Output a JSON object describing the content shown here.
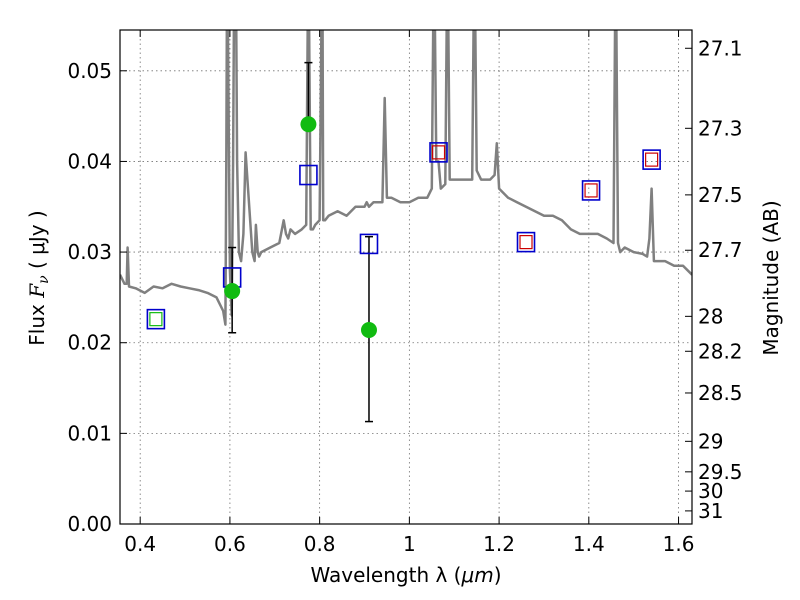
{
  "chart_data": {
    "type": "scatter",
    "title": "",
    "xlabel_text": "Wavelength  λ (",
    "xlabel_unit": "μm",
    "xlabel_close": ")",
    "ylabel_prefix": "Flux ",
    "ylabel_symbol": "F",
    "ylabel_sub": "ν",
    "ylabel_suffix": " ( μJy )",
    "y2label": "Magnitude (AB)",
    "xlim": [
      0.355,
      1.63
    ],
    "ylim": [
      0.0,
      0.0545
    ],
    "grid": true,
    "x_ticks": [
      0.4,
      0.6,
      0.8,
      1.0,
      1.2,
      1.4,
      1.6
    ],
    "x_tick_labels": [
      "0.4",
      "0.6",
      "0.8",
      "1",
      "1.2",
      "1.4",
      "1.6"
    ],
    "y_ticks": [
      0.0,
      0.01,
      0.02,
      0.03,
      0.04,
      0.05
    ],
    "y_tick_labels": [
      "0.00",
      "0.01",
      "0.02",
      "0.03",
      "0.04",
      "0.05"
    ],
    "y2_ticks": [
      27.1,
      27.3,
      27.5,
      27.7,
      28.0,
      28.2,
      28.5,
      29.0,
      29.5,
      30.0,
      31.0
    ],
    "y2_tick_labels": [
      "27.1",
      "27.3",
      "27.5",
      "27.7",
      "28",
      "28.2",
      "28.5",
      "29",
      "29.5",
      "30",
      "31"
    ],
    "colors": {
      "model": "#808080",
      "model_photometry": "#0000cc",
      "observed": "#11bb11",
      "inner_red": "#cc0000",
      "inner_green": "#11bb11",
      "errorbar": "#000000"
    },
    "series": [
      {
        "kind": "model_spectrum",
        "x": [
          0.355,
          0.365,
          0.37,
          0.372,
          0.375,
          0.39,
          0.41,
          0.43,
          0.45,
          0.47,
          0.49,
          0.51,
          0.53,
          0.55,
          0.57,
          0.585,
          0.59,
          0.592,
          0.594,
          0.6,
          0.604,
          0.607,
          0.61,
          0.613,
          0.616,
          0.62,
          0.625,
          0.63,
          0.635,
          0.65,
          0.655,
          0.658,
          0.662,
          0.665,
          0.67,
          0.69,
          0.71,
          0.72,
          0.725,
          0.73,
          0.735,
          0.745,
          0.76,
          0.77,
          0.775,
          0.78,
          0.785,
          0.79,
          0.8,
          0.806,
          0.808,
          0.812,
          0.82,
          0.84,
          0.86,
          0.88,
          0.9,
          0.905,
          0.91,
          0.92,
          0.93,
          0.94,
          0.945,
          0.95,
          0.96,
          0.98,
          1.0,
          1.02,
          1.04,
          1.05,
          1.055,
          1.06,
          1.065,
          1.07,
          1.08,
          1.085,
          1.09,
          1.1,
          1.12,
          1.14,
          1.145,
          1.15,
          1.16,
          1.18,
          1.19,
          1.195,
          1.2,
          1.22,
          1.24,
          1.26,
          1.28,
          1.3,
          1.32,
          1.34,
          1.36,
          1.38,
          1.4,
          1.42,
          1.44,
          1.455,
          1.46,
          1.465,
          1.47,
          1.48,
          1.5,
          1.52,
          1.53,
          1.535,
          1.54,
          1.545,
          1.55,
          1.57,
          1.59,
          1.61,
          1.63
        ],
        "y": [
          0.0275,
          0.0265,
          0.0265,
          0.0305,
          0.0262,
          0.026,
          0.0255,
          0.0262,
          0.026,
          0.0265,
          0.0262,
          0.026,
          0.0258,
          0.0255,
          0.025,
          0.0235,
          0.022,
          0.04,
          0.065,
          0.028,
          0.023,
          0.04,
          0.065,
          0.065,
          0.04,
          0.03,
          0.029,
          0.032,
          0.041,
          0.03,
          0.029,
          0.033,
          0.03,
          0.0295,
          0.03,
          0.0305,
          0.031,
          0.0335,
          0.032,
          0.0315,
          0.0325,
          0.032,
          0.0325,
          0.033,
          0.065,
          0.0325,
          0.0325,
          0.033,
          0.0335,
          0.065,
          0.0335,
          0.0335,
          0.034,
          0.0345,
          0.034,
          0.035,
          0.035,
          0.0355,
          0.035,
          0.0355,
          0.0355,
          0.0355,
          0.047,
          0.036,
          0.036,
          0.0355,
          0.0355,
          0.036,
          0.036,
          0.037,
          0.065,
          0.04,
          0.04,
          0.037,
          0.0375,
          0.065,
          0.038,
          0.038,
          0.038,
          0.038,
          0.065,
          0.039,
          0.038,
          0.038,
          0.0385,
          0.042,
          0.037,
          0.036,
          0.0355,
          0.035,
          0.0345,
          0.034,
          0.034,
          0.0335,
          0.0325,
          0.032,
          0.032,
          0.032,
          0.0315,
          0.031,
          0.065,
          0.031,
          0.03,
          0.0305,
          0.03,
          0.0298,
          0.0295,
          0.0315,
          0.037,
          0.029,
          0.029,
          0.029,
          0.0285,
          0.0285,
          0.0275
        ]
      },
      {
        "kind": "model_photometry",
        "name": "",
        "x": [
          0.435,
          0.605,
          0.775,
          0.91,
          1.065,
          1.26,
          1.405,
          1.54
        ],
        "y": [
          0.0226,
          0.0272,
          0.0385,
          0.0309,
          0.041,
          0.0311,
          0.0368,
          0.0402
        ],
        "inner": [
          "green",
          "none",
          "none",
          "none",
          "red",
          "red",
          "red",
          "red"
        ]
      },
      {
        "kind": "observed",
        "name": "",
        "x": [
          0.605,
          0.775,
          0.91
        ],
        "y": [
          0.0257,
          0.0441,
          0.0214
        ],
        "err_low": [
          0.0211,
          0.0441,
          0.0113
        ],
        "err_high": [
          0.0305,
          0.0509,
          0.0317
        ]
      }
    ]
  }
}
